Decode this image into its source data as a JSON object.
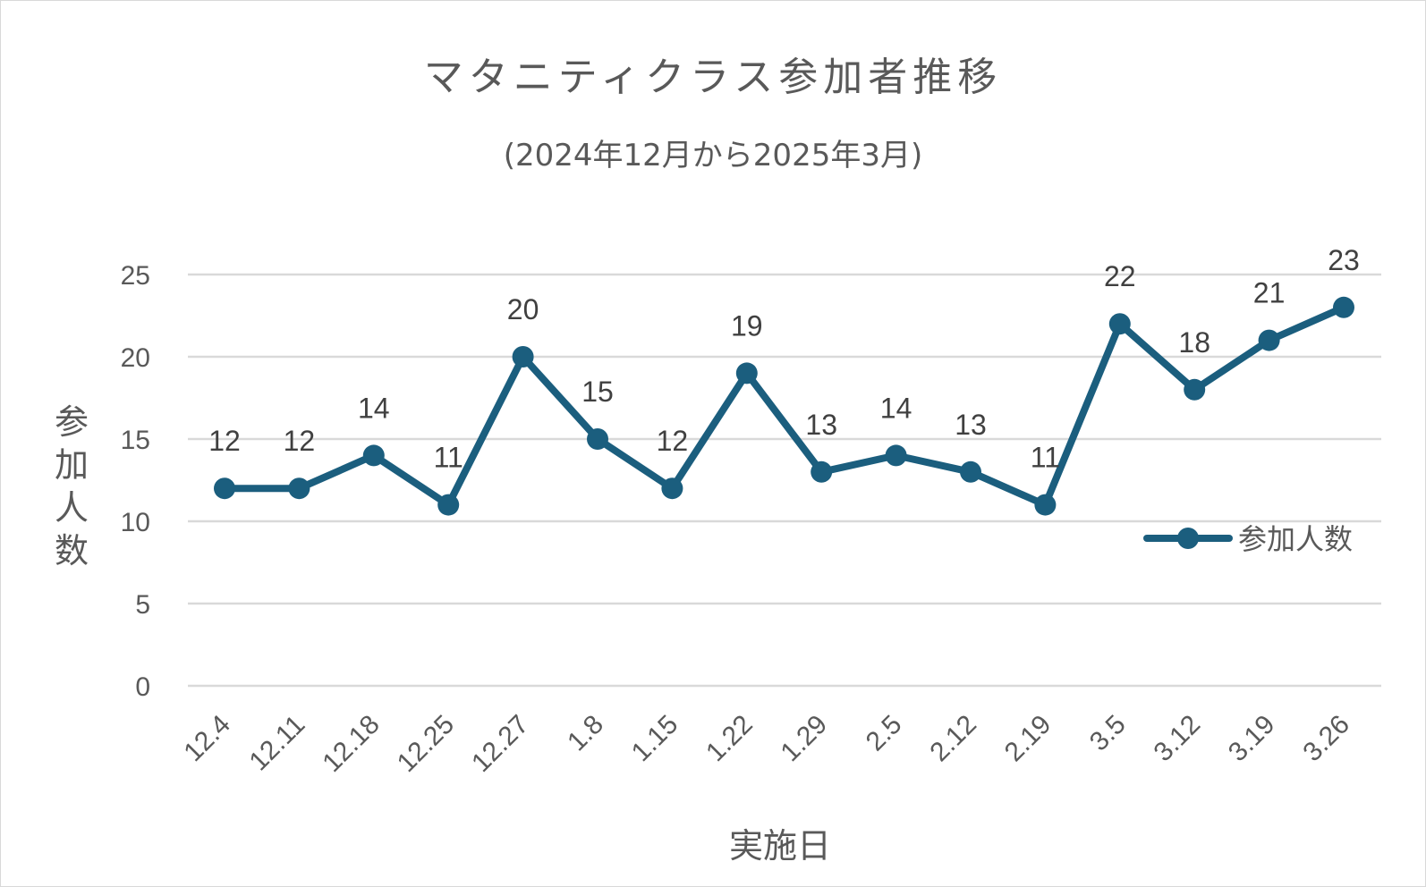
{
  "chart_data": {
    "type": "line",
    "title": "マタニティクラス参加者推移",
    "subtitle": "(2024年12月から2025年3月)",
    "xlabel": "実施日",
    "ylabel": "参加人数",
    "categories": [
      "12.4",
      "12.11",
      "12.18",
      "12.25",
      "12.27",
      "1.8",
      "1.15",
      "1.22",
      "1.29",
      "2.5",
      "2.12",
      "2.19",
      "3.5",
      "3.12",
      "3.19",
      "3.26"
    ],
    "series": [
      {
        "name": "参加人数",
        "values": [
          12,
          12,
          14,
          11,
          20,
          15,
          12,
          19,
          13,
          14,
          13,
          11,
          22,
          18,
          21,
          23
        ],
        "color": "#1b5e7e"
      }
    ],
    "ylim": [
      0,
      25
    ],
    "yticks": [
      0,
      5,
      10,
      15,
      20,
      25
    ],
    "grid": true,
    "legend_position": "right",
    "data_labels": true
  }
}
